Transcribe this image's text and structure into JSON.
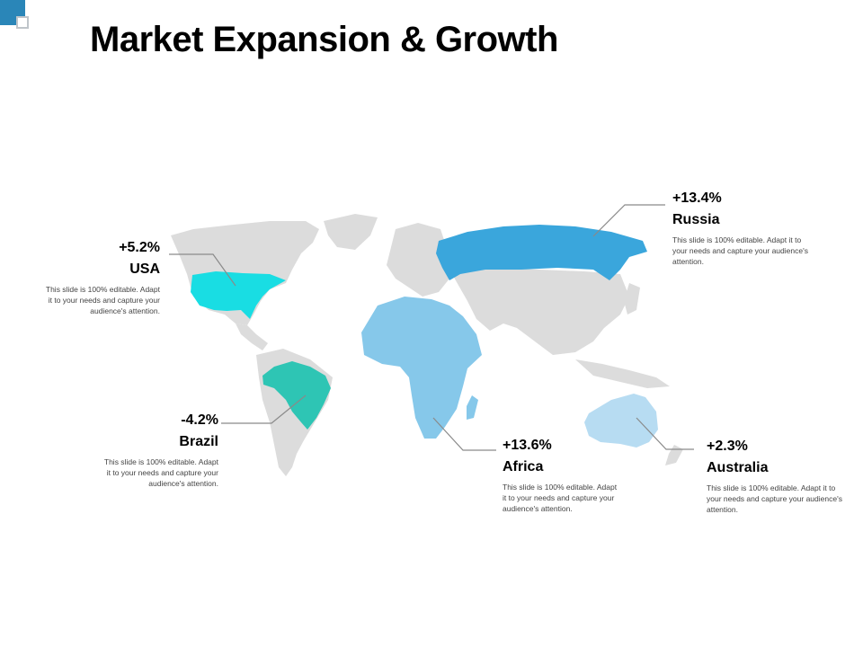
{
  "slide": {
    "title": "Market Expansion & Growth"
  },
  "colors": {
    "land": "#dcdcdc",
    "usa": "#19dde3",
    "brazil": "#2ec5b4",
    "africa": "#86c8ea",
    "russia": "#3aa6dc",
    "australia": "#b7dcf2",
    "leader": "#8a8a8a",
    "corner_accent": "#2a86b8"
  },
  "regions": [
    {
      "id": "usa",
      "value": "+5.2%",
      "name": "USA",
      "description": "This slide is 100% editable. Adapt it to your needs and capture your audience's attention."
    },
    {
      "id": "brazil",
      "value": "-4.2%",
      "name": "Brazil",
      "description": "This slide is 100% editable. Adapt it to your needs and capture your audience's attention."
    },
    {
      "id": "africa",
      "value": "+13.6%",
      "name": "Africa",
      "description": "This slide is 100% editable. Adapt it to your needs and capture your audience's attention."
    },
    {
      "id": "russia",
      "value": "+13.4%",
      "name": "Russia",
      "description": "This slide is 100% editable. Adapt it to your needs and capture your audience's attention."
    },
    {
      "id": "australia",
      "value": "+2.3%",
      "name": "Australia",
      "description": "This slide is 100% editable. Adapt it to your needs and capture your audience's attention."
    }
  ]
}
